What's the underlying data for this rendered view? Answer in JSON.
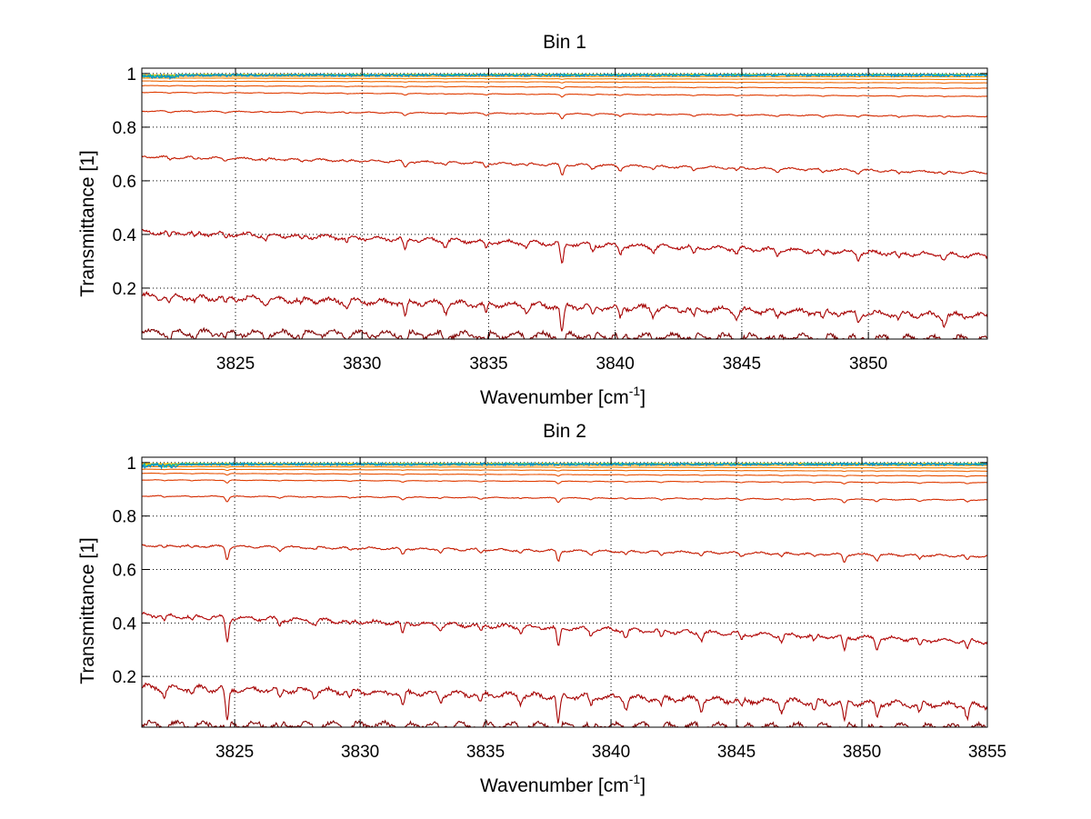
{
  "chart_data": [
    {
      "type": "line",
      "title": "Bin 1",
      "xlabel": "Wavenumber [cm",
      "xlabel_sup": "-1",
      "xlabel_end": "]",
      "ylabel": "Transmittance [1]",
      "xlim": [
        3821.3,
        3854.7
      ],
      "ylim": [
        0.01,
        1.02
      ],
      "grid": true,
      "x_ticks": [
        3825,
        3830,
        3835,
        3840,
        3845,
        3850
      ],
      "y_ticks": [
        0.2,
        0.4,
        0.6,
        0.8,
        1
      ],
      "x_tick_labels": [
        "3825",
        "3830",
        "3835",
        "3840",
        "3845",
        "3850"
      ],
      "y_tick_labels": [
        "0.2",
        "0.4",
        "0.6",
        "0.8",
        "1"
      ],
      "line_baselines_start": [
        0.035,
        0.17,
        0.41,
        0.69,
        0.86,
        0.93,
        0.955,
        0.972,
        0.983,
        0.99,
        0.995
      ],
      "line_baselines_end": [
        0.01,
        0.095,
        0.32,
        0.63,
        0.84,
        0.915,
        0.945,
        0.965,
        0.978,
        0.988,
        0.994
      ],
      "line_colors": [
        "#7f0000",
        "#a50000",
        "#b00000",
        "#c51b00",
        "#d42a00",
        "#e03c00",
        "#e85000",
        "#ee6600",
        "#f58000",
        "#fb9a00",
        "#ffb400"
      ],
      "top_colors": [
        "#ffd200",
        "#00c0a0",
        "#0090d0"
      ],
      "absorption_lines": [
        {
          "x": 3822.4,
          "depth": 0.25
        },
        {
          "x": 3823.4,
          "depth": 0.2
        },
        {
          "x": 3824.6,
          "depth": 0.22
        },
        {
          "x": 3826.2,
          "depth": 0.2
        },
        {
          "x": 3827.6,
          "depth": 0.18
        },
        {
          "x": 3829.4,
          "depth": 0.22
        },
        {
          "x": 3831.7,
          "depth": 0.55
        },
        {
          "x": 3833.3,
          "depth": 0.3
        },
        {
          "x": 3834.9,
          "depth": 0.35
        },
        {
          "x": 3836.5,
          "depth": 0.22
        },
        {
          "x": 3837.9,
          "depth": 1.0
        },
        {
          "x": 3839.1,
          "depth": 0.3
        },
        {
          "x": 3840.2,
          "depth": 0.4
        },
        {
          "x": 3841.5,
          "depth": 0.25
        },
        {
          "x": 3843.1,
          "depth": 0.3
        },
        {
          "x": 3844.8,
          "depth": 0.28
        },
        {
          "x": 3846.4,
          "depth": 0.25
        },
        {
          "x": 3848.2,
          "depth": 0.28
        },
        {
          "x": 3849.6,
          "depth": 0.3
        },
        {
          "x": 3851.2,
          "depth": 0.25
        },
        {
          "x": 3853.0,
          "depth": 0.3
        }
      ]
    },
    {
      "type": "line",
      "title": "Bin 2",
      "xlabel": "Wavenumber [cm",
      "xlabel_sup": "-1",
      "xlabel_end": "]",
      "ylabel": "Transmittance [1]",
      "xlim": [
        3821.3,
        3855.0
      ],
      "ylim": [
        0.01,
        1.02
      ],
      "grid": true,
      "x_ticks": [
        3825,
        3830,
        3835,
        3840,
        3845,
        3850,
        3855
      ],
      "y_ticks": [
        0.2,
        0.4,
        0.6,
        0.8,
        1
      ],
      "x_tick_labels": [
        "3825",
        "3830",
        "3835",
        "3840",
        "3845",
        "3850",
        "3855"
      ],
      "y_tick_labels": [
        "0.2",
        "0.4",
        "0.6",
        "0.8",
        "1"
      ],
      "line_baselines_start": [
        0.02,
        0.16,
        0.43,
        0.69,
        0.875,
        0.935,
        0.96,
        0.975,
        0.985,
        0.991,
        0.996
      ],
      "line_baselines_end": [
        0.01,
        0.09,
        0.33,
        0.65,
        0.86,
        0.925,
        0.95,
        0.968,
        0.98,
        0.989,
        0.995
      ],
      "line_colors": [
        "#7f0000",
        "#a50000",
        "#b00000",
        "#c51b00",
        "#d42a00",
        "#e03c00",
        "#e85000",
        "#ee6600",
        "#f58000",
        "#fb9a00",
        "#ffb400"
      ],
      "top_colors": [
        "#ffd200",
        "#00c0a0",
        "#0090d0"
      ],
      "absorption_lines": [
        {
          "x": 3822.2,
          "depth": 0.3
        },
        {
          "x": 3823.3,
          "depth": 0.22
        },
        {
          "x": 3824.7,
          "depth": 1.2
        },
        {
          "x": 3826.8,
          "depth": 0.3
        },
        {
          "x": 3828.2,
          "depth": 0.22
        },
        {
          "x": 3829.6,
          "depth": 0.25
        },
        {
          "x": 3831.7,
          "depth": 0.55
        },
        {
          "x": 3833.2,
          "depth": 0.3
        },
        {
          "x": 3834.8,
          "depth": 0.35
        },
        {
          "x": 3836.4,
          "depth": 0.25
        },
        {
          "x": 3837.9,
          "depth": 1.0
        },
        {
          "x": 3839.2,
          "depth": 0.3
        },
        {
          "x": 3840.6,
          "depth": 0.35
        },
        {
          "x": 3842.0,
          "depth": 0.3
        },
        {
          "x": 3843.6,
          "depth": 0.35
        },
        {
          "x": 3845.2,
          "depth": 0.3
        },
        {
          "x": 3846.8,
          "depth": 0.35
        },
        {
          "x": 3848.1,
          "depth": 0.3
        },
        {
          "x": 3849.3,
          "depth": 0.7
        },
        {
          "x": 3850.6,
          "depth": 0.5
        },
        {
          "x": 3852.3,
          "depth": 0.35
        },
        {
          "x": 3854.2,
          "depth": 0.45
        }
      ]
    }
  ]
}
